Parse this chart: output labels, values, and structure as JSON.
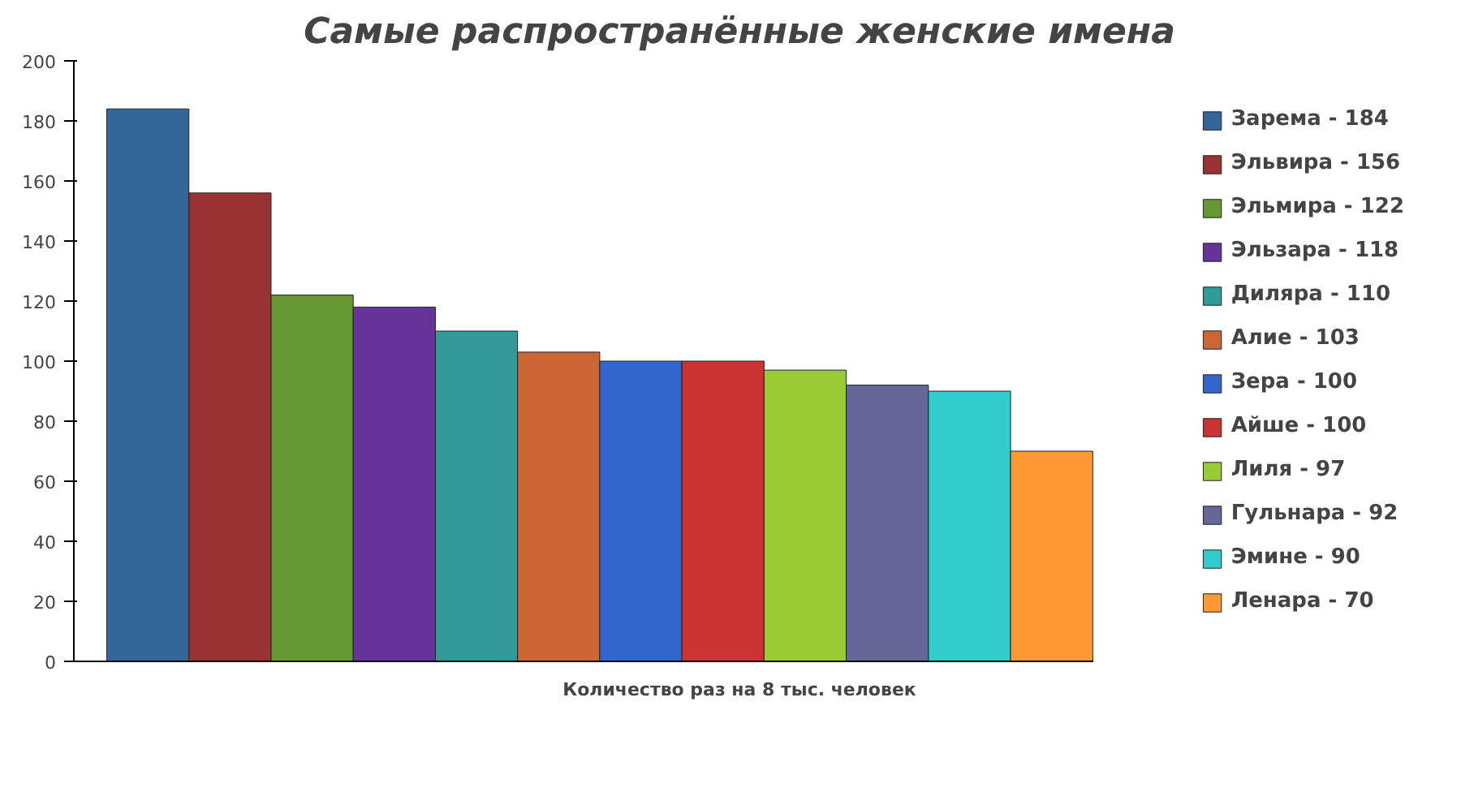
{
  "chart_data": {
    "type": "bar",
    "title": "Самые распространённые женские имена",
    "xlabel": "Количество раз на 8 тыс. человек",
    "categories": [
      null,
      null,
      null,
      null,
      null,
      null,
      null,
      null,
      null,
      null,
      null,
      null
    ],
    "series": [
      {
        "name": "Зарема - 184",
        "color": "#336699",
        "values": [
          184,
          null,
          null,
          null,
          null,
          null,
          null,
          null,
          null,
          null,
          null,
          null
        ]
      },
      {
        "name": "Эльвира - 156",
        "color": "#993333",
        "values": [
          null,
          156,
          null,
          null,
          null,
          null,
          null,
          null,
          null,
          null,
          null,
          null
        ]
      },
      {
        "name": "Эльмира - 122",
        "color": "#669933",
        "values": [
          null,
          null,
          122,
          null,
          null,
          null,
          null,
          null,
          null,
          null,
          null,
          null
        ]
      },
      {
        "name": "Эльзара - 118",
        "color": "#663399",
        "values": [
          null,
          null,
          null,
          118,
          null,
          null,
          null,
          null,
          null,
          null,
          null,
          null
        ]
      },
      {
        "name": "Диляра - 110",
        "color": "#339999",
        "values": [
          null,
          null,
          null,
          null,
          110,
          null,
          null,
          null,
          null,
          null,
          null,
          null
        ]
      },
      {
        "name": "Алие - 103",
        "color": "#cc6633",
        "values": [
          null,
          null,
          null,
          null,
          null,
          103,
          null,
          null,
          null,
          null,
          null,
          null
        ]
      },
      {
        "name": "Зера - 100",
        "color": "#3366cc",
        "values": [
          null,
          null,
          null,
          null,
          null,
          null,
          100,
          null,
          null,
          null,
          null,
          null
        ]
      },
      {
        "name": "Айше - 100",
        "color": "#cc3333",
        "values": [
          null,
          null,
          null,
          null,
          null,
          null,
          null,
          100,
          null,
          null,
          null,
          null
        ]
      },
      {
        "name": "Лиля - 97",
        "color": "#99cc33",
        "values": [
          null,
          null,
          null,
          null,
          null,
          null,
          null,
          null,
          97,
          null,
          null,
          null
        ]
      },
      {
        "name": "Гульнара - 92",
        "color": "#666699",
        "values": [
          null,
          null,
          null,
          null,
          null,
          null,
          null,
          null,
          null,
          92,
          null,
          null
        ]
      },
      {
        "name": "Эмине - 90",
        "color": "#33cccc",
        "values": [
          null,
          null,
          null,
          null,
          null,
          null,
          null,
          null,
          null,
          null,
          90,
          null
        ]
      },
      {
        "name": "Ленара - 70",
        "color": "#ff9933",
        "values": [
          null,
          null,
          null,
          null,
          null,
          null,
          null,
          null,
          null,
          null,
          null,
          70
        ]
      }
    ],
    "ylim": [
      0,
      200
    ],
    "yticks": [
      0,
      20,
      40,
      60,
      80,
      100,
      120,
      140,
      160,
      180,
      200
    ],
    "grid": false,
    "legend": "right",
    "tick_labels": "y"
  }
}
